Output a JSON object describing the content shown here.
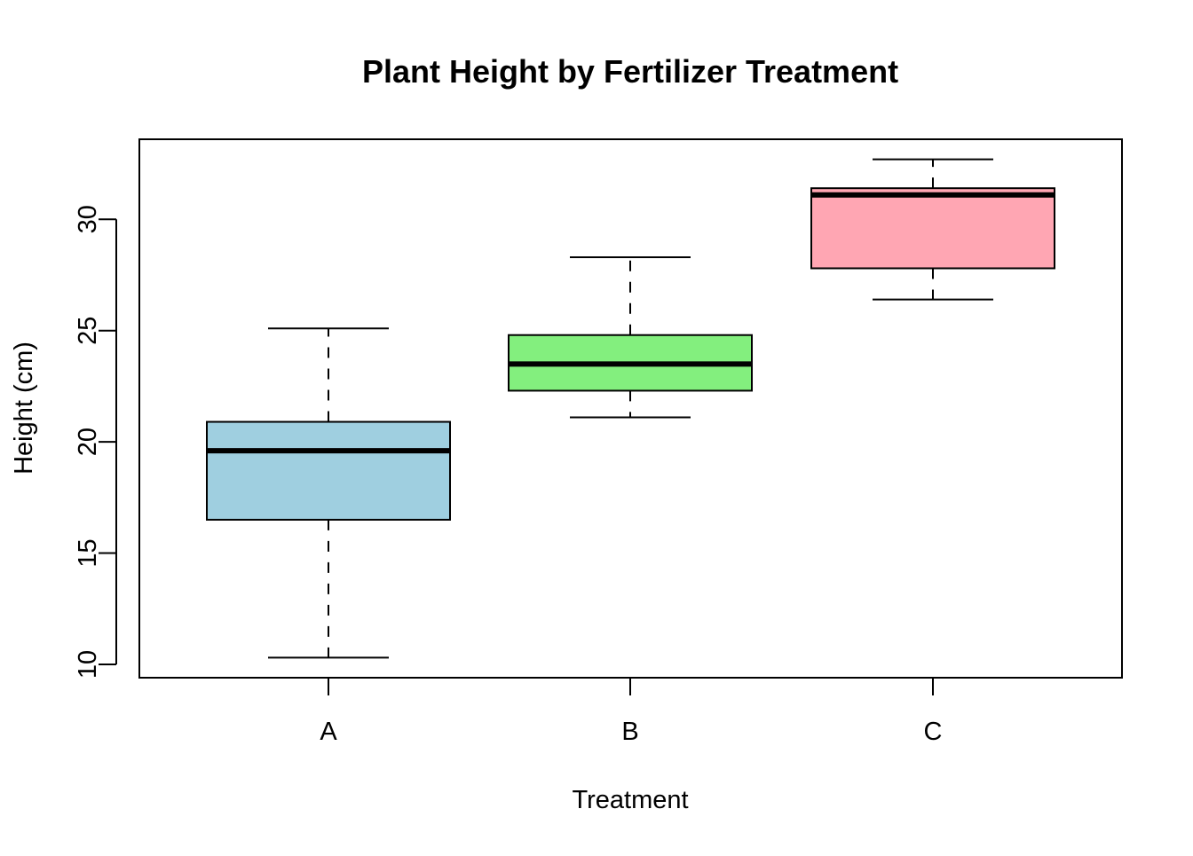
{
  "chart_data": {
    "type": "box",
    "title": "Plant Height by Fertilizer Treatment",
    "xlabel": "Treatment",
    "ylabel": "Height (cm)",
    "ylim": [
      9.4,
      33.6
    ],
    "yticks": [
      "10",
      "15",
      "20",
      "25",
      "30"
    ],
    "grid": false,
    "legend": "none",
    "categories": [
      "A",
      "B",
      "C"
    ],
    "boxes": [
      {
        "category": "A",
        "min": 10.3,
        "q1": 16.5,
        "median": 19.6,
        "q3": 20.9,
        "max": 25.1,
        "color": "#9FCFE0"
      },
      {
        "category": "B",
        "min": 21.1,
        "q1": 22.3,
        "median": 23.5,
        "q3": 24.8,
        "max": 28.3,
        "color": "#83EF7E"
      },
      {
        "category": "C",
        "min": 26.4,
        "q1": 27.8,
        "median": 31.1,
        "q3": 31.4,
        "max": 32.7,
        "color": "#FFA6B3"
      }
    ]
  }
}
